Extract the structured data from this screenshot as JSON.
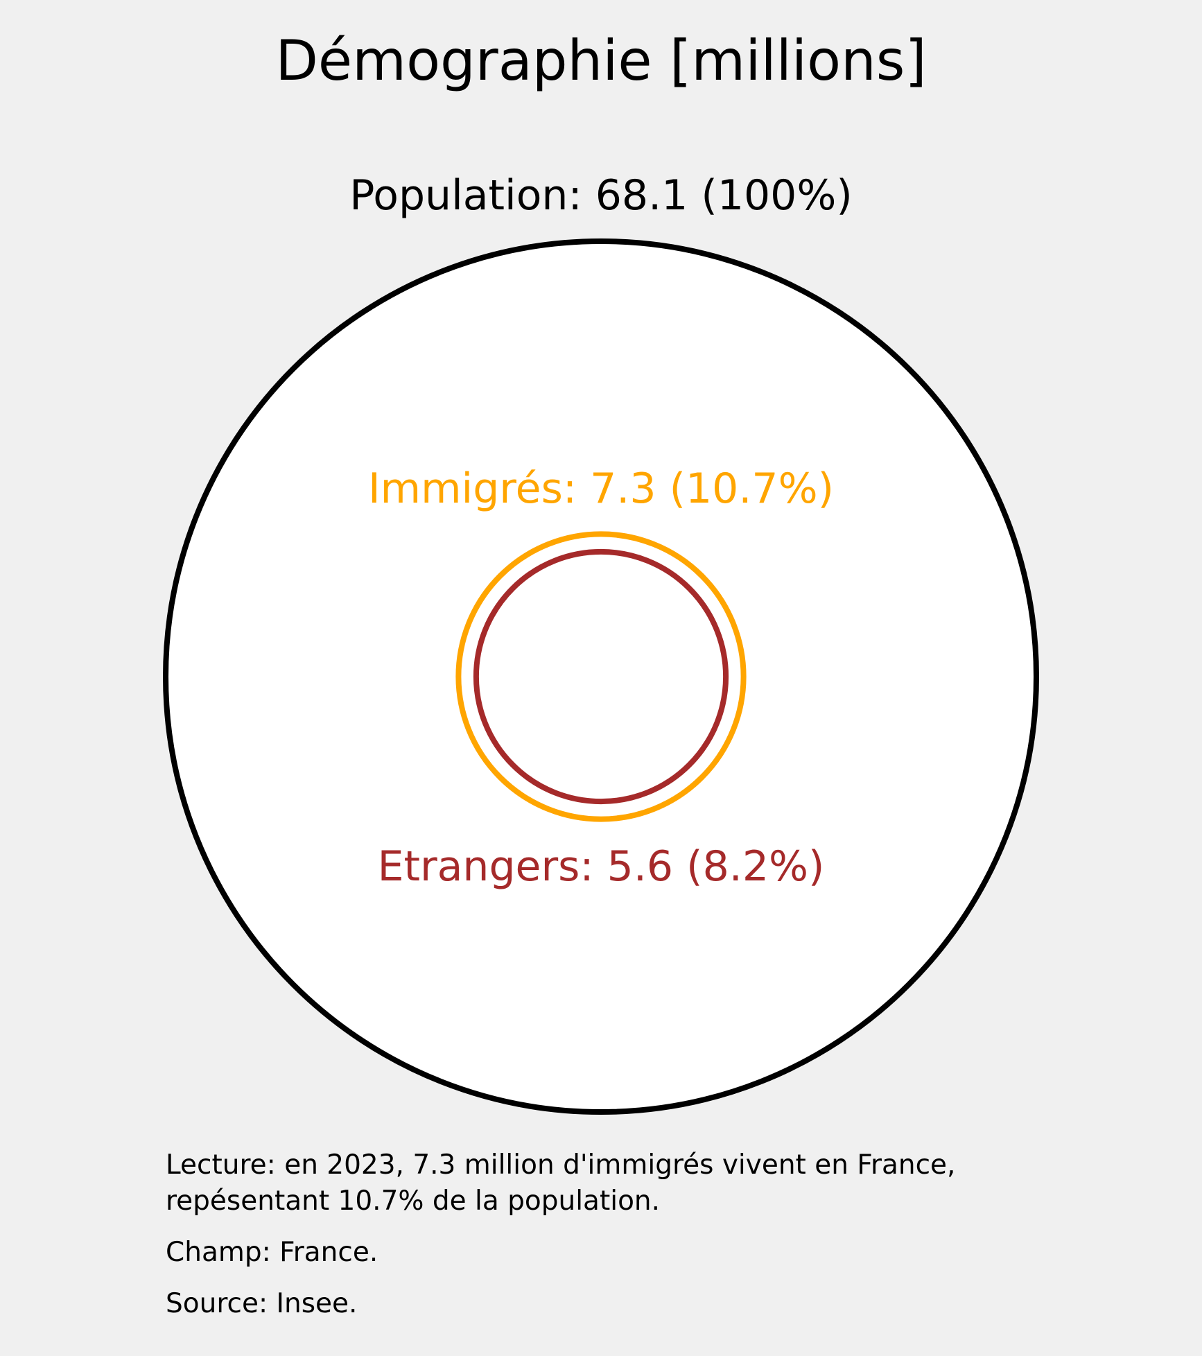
{
  "chart_data": {
    "type": "nested-circles",
    "title": "Démographie [millions]",
    "unit": "millions",
    "series": [
      {
        "name": "Population",
        "value": 68.1,
        "percent": 100,
        "label": "Population: 68.1 (100%)",
        "color": "#000000"
      },
      {
        "name": "Immigrés",
        "value": 7.3,
        "percent": 10.7,
        "label": "Immigrés: 7.3 (10.7%)",
        "color": "#FFA500"
      },
      {
        "name": "Etrangers",
        "value": 5.6,
        "percent": 8.2,
        "label": "Etrangers: 5.6 (8.2%)",
        "color": "#A52A2A"
      }
    ]
  },
  "notes": {
    "lecture": "Lecture: en 2023, 7.3 million d'immigrés vivent en France, repésentant 10.7% de la population.",
    "champ": "Champ: France.",
    "source": "Source: Insee."
  },
  "colors": {
    "background": "#f0f0f0",
    "disc_fill": "#ffffff"
  }
}
